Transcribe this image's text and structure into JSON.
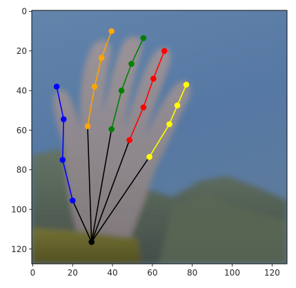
{
  "figure": {
    "image_size": [
      128,
      128
    ],
    "x_ticks": [
      0,
      20,
      40,
      60,
      80,
      100,
      120
    ],
    "y_ticks": [
      0,
      20,
      40,
      60,
      80,
      100,
      120
    ],
    "image_description": "blurred photo of a raised open hand against a blue sky with mountains, hand keypoints overlaid",
    "colors": {
      "wrist_links": "#000000",
      "thumb": "#0000ff",
      "index": "#ffa500",
      "middle": "#008000",
      "ring": "#ff0000",
      "pinky": "#ffff00"
    },
    "wrist": [
      29.5,
      116.5
    ],
    "fingers": [
      {
        "id": "thumb",
        "color": "#0000ff",
        "points": [
          [
            20,
            95.5
          ],
          [
            15,
            75
          ],
          [
            15.5,
            54.5
          ],
          [
            12,
            38
          ]
        ]
      },
      {
        "id": "index",
        "color": "#ffa500",
        "points": [
          [
            27.5,
            58
          ],
          [
            31,
            38
          ],
          [
            34.5,
            23.5
          ],
          [
            39.5,
            10
          ]
        ]
      },
      {
        "id": "middle",
        "color": "#008000",
        "points": [
          [
            39.5,
            59.5
          ],
          [
            44.5,
            40
          ],
          [
            49.5,
            26.5
          ],
          [
            55.5,
            13.5
          ]
        ]
      },
      {
        "id": "ring",
        "color": "#ff0000",
        "points": [
          [
            48.5,
            65
          ],
          [
            55.5,
            48.5
          ],
          [
            60.5,
            34
          ],
          [
            66,
            20
          ]
        ]
      },
      {
        "id": "pinky",
        "color": "#ffff00",
        "points": [
          [
            58.5,
            73.5
          ],
          [
            68.5,
            57
          ],
          [
            72.5,
            47.5
          ],
          [
            77,
            37
          ]
        ]
      }
    ]
  }
}
